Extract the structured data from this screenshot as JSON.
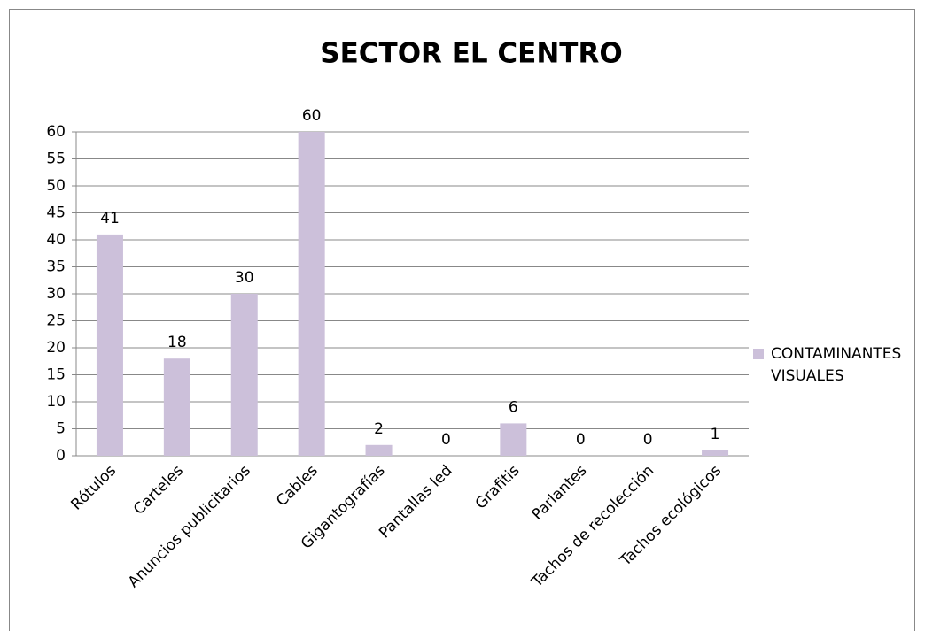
{
  "chart_data": {
    "type": "bar",
    "title": "SECTOR EL CENTRO",
    "categories": [
      "Rótulos",
      "Carteles",
      "Anuncios publicitarios",
      "Cables",
      "Gigantografías",
      "Pantallas led",
      "Grafitis",
      "Parlantes",
      "Tachos de recolección",
      "Tachos ecológicos"
    ],
    "series": [
      {
        "name": "CONTAMINANTES VISUALES",
        "color": "#ccc0da",
        "values": [
          41,
          18,
          30,
          60,
          2,
          0,
          6,
          0,
          0,
          1
        ]
      }
    ],
    "ylim": [
      0,
      60
    ],
    "yticks": [
      0,
      5,
      10,
      15,
      20,
      25,
      30,
      35,
      40,
      45,
      50,
      55,
      60
    ],
    "grid": true,
    "legend": "right"
  }
}
